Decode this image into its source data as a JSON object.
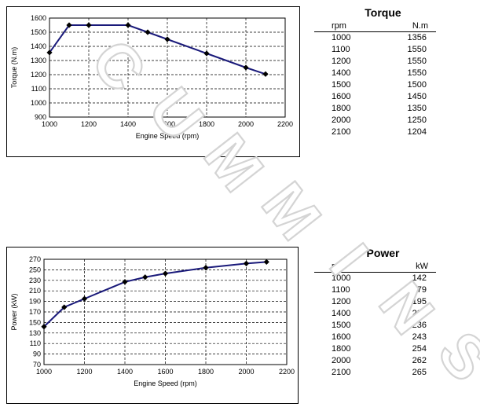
{
  "watermark": "CUMMINS",
  "torque": {
    "table_title": "Torque",
    "col_rpm": "rpm",
    "col_value": "N.m",
    "rows": [
      {
        "rpm": "1000",
        "value": "1356"
      },
      {
        "rpm": "1100",
        "value": "1550"
      },
      {
        "rpm": "1200",
        "value": "1550"
      },
      {
        "rpm": "1400",
        "value": "1550"
      },
      {
        "rpm": "1500",
        "value": "1500"
      },
      {
        "rpm": "1600",
        "value": "1450"
      },
      {
        "rpm": "1800",
        "value": "1350"
      },
      {
        "rpm": "2000",
        "value": "1250"
      },
      {
        "rpm": "2100",
        "value": "1204"
      }
    ]
  },
  "power": {
    "table_title": "Power",
    "col_rpm": "rpm",
    "col_value": "kW",
    "rows": [
      {
        "rpm": "1000",
        "value": "142"
      },
      {
        "rpm": "1100",
        "value": "179"
      },
      {
        "rpm": "1200",
        "value": "195"
      },
      {
        "rpm": "1400",
        "value": "227"
      },
      {
        "rpm": "1500",
        "value": "236"
      },
      {
        "rpm": "1600",
        "value": "243"
      },
      {
        "rpm": "1800",
        "value": "254"
      },
      {
        "rpm": "2000",
        "value": "262"
      },
      {
        "rpm": "2100",
        "value": "265"
      }
    ]
  },
  "chart_data": [
    {
      "type": "line",
      "xlabel": "Engine Speed (rpm)",
      "ylabel": "Torque (N.m)",
      "xlim": [
        1000,
        2200
      ],
      "ylim": [
        900,
        1600
      ],
      "xticks": [
        1000,
        1200,
        1400,
        1600,
        1800,
        2000,
        2200
      ],
      "yticks": [
        900,
        1000,
        1100,
        1200,
        1300,
        1400,
        1500,
        1600
      ],
      "grid": true,
      "line_color": "#1a1a7a",
      "x": [
        1000,
        1100,
        1200,
        1400,
        1500,
        1600,
        1800,
        2000,
        2100
      ],
      "y": [
        1356,
        1550,
        1550,
        1550,
        1500,
        1450,
        1350,
        1250,
        1204
      ]
    },
    {
      "type": "line",
      "xlabel": "Engine Speed (rpm)",
      "ylabel": "Power (kW)",
      "xlim": [
        1000,
        2200
      ],
      "ylim": [
        70,
        270
      ],
      "xticks": [
        1000,
        1200,
        1400,
        1600,
        1800,
        2000,
        2200
      ],
      "yticks": [
        70,
        90,
        110,
        130,
        150,
        170,
        190,
        210,
        230,
        250,
        270
      ],
      "grid": true,
      "line_color": "#1a1a7a",
      "x": [
        1000,
        1100,
        1200,
        1400,
        1500,
        1600,
        1800,
        2000,
        2100
      ],
      "y": [
        142,
        179,
        195,
        227,
        236,
        243,
        254,
        262,
        265
      ]
    }
  ]
}
